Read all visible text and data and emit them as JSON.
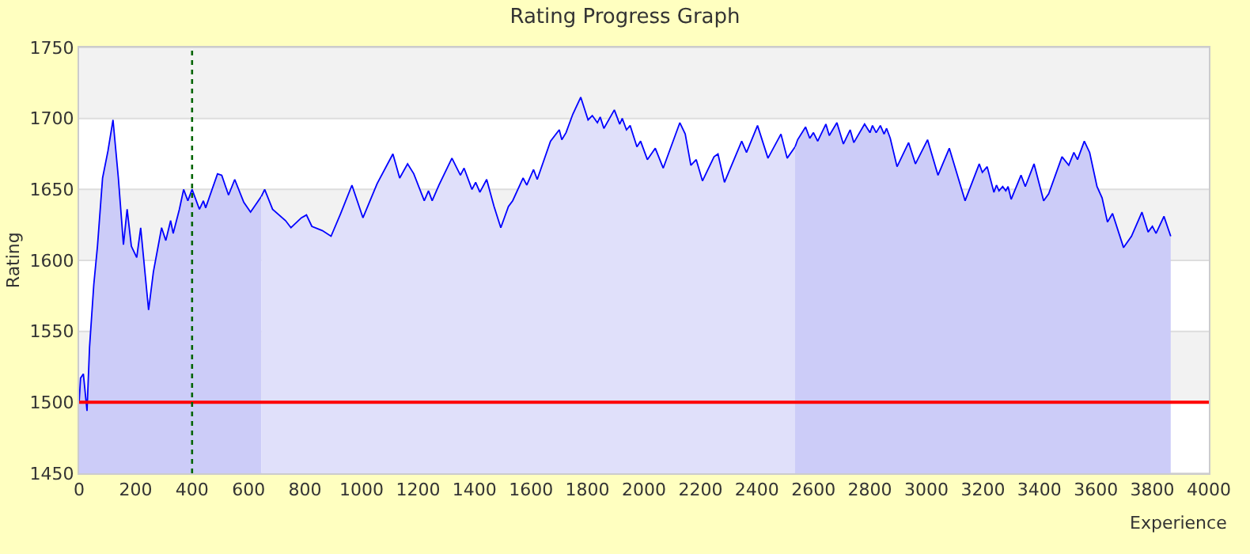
{
  "chart_data": {
    "type": "area",
    "title": "Rating Progress Graph",
    "xlabel": "Experience",
    "ylabel": "Rating",
    "xlim": [
      0,
      4000
    ],
    "xticks": [
      0,
      200,
      400,
      600,
      800,
      1000,
      1200,
      1400,
      1600,
      1800,
      2000,
      2200,
      2400,
      2600,
      2800,
      3000,
      3200,
      3400,
      3600,
      3800,
      4000
    ],
    "ylim": [
      1450,
      1750
    ],
    "yticks": [
      1450,
      1500,
      1550,
      1600,
      1650,
      1700,
      1750
    ],
    "grid": "y",
    "series": [
      {
        "color": "#ccccf8",
        "x": [
          0,
          5,
          15,
          28,
          37,
          52,
          65,
          83,
          102,
          120,
          139,
          157,
          170,
          185,
          204,
          218,
          246,
          263,
          292,
          307,
          324,
          333,
          355,
          370,
          385,
          400,
          426,
          440,
          448,
          490,
          505,
          529,
          551,
          583,
          607,
          645
        ],
        "values": [
          1500,
          1517,
          1520,
          1494,
          1539,
          1583,
          1610,
          1658,
          1677,
          1699,
          1658,
          1611,
          1636,
          1610,
          1602,
          1623,
          1565,
          1592,
          1623,
          1614,
          1628,
          1619,
          1636,
          1650,
          1642,
          1650,
          1636,
          1642,
          1637,
          1661,
          1660,
          1646,
          1657,
          1641,
          1634,
          1645
        ]
      },
      {
        "color": "#e0e0fa",
        "x": [
          645,
          657,
          685,
          731,
          750,
          787,
          805,
          824,
          861,
          892,
          926,
          966,
          1005,
          1055,
          1111,
          1135,
          1163,
          1185,
          1222,
          1237,
          1250,
          1274,
          1320,
          1350,
          1363,
          1391,
          1404,
          1419,
          1443,
          1469,
          1493,
          1520,
          1535,
          1572,
          1585,
          1609,
          1622,
          1669,
          1700,
          1709,
          1724,
          1748,
          1776,
          1802,
          1817,
          1835,
          1845,
          1858,
          1895,
          1914,
          1923,
          1938,
          1951,
          1975,
          1988,
          2012,
          2040,
          2068,
          2127,
          2146,
          2166,
          2185,
          2207,
          2248,
          2262,
          2285,
          2346,
          2363,
          2402,
          2439,
          2485,
          2507,
          2535
        ],
        "values": [
          1645,
          1650,
          1636,
          1628,
          1623,
          1630,
          1632,
          1624,
          1621,
          1617,
          1633,
          1653,
          1630,
          1654,
          1675,
          1658,
          1668,
          1661,
          1642,
          1649,
          1642,
          1653,
          1672,
          1660,
          1665,
          1650,
          1655,
          1648,
          1657,
          1638,
          1623,
          1638,
          1642,
          1658,
          1653,
          1664,
          1657,
          1684,
          1692,
          1685,
          1690,
          1703,
          1715,
          1699,
          1702,
          1697,
          1701,
          1693,
          1706,
          1696,
          1700,
          1692,
          1695,
          1680,
          1684,
          1671,
          1679,
          1665,
          1697,
          1689,
          1667,
          1671,
          1656,
          1673,
          1675,
          1655,
          1684,
          1676,
          1695,
          1672,
          1689,
          1672,
          1680
        ]
      },
      {
        "color": "#ccccf8",
        "x": [
          2535,
          2544,
          2572,
          2587,
          2600,
          2615,
          2644,
          2656,
          2683,
          2706,
          2730,
          2743,
          2781,
          2800,
          2809,
          2822,
          2837,
          2850,
          2859,
          2872,
          2896,
          2937,
          2961,
          3004,
          3041,
          3081,
          3137,
          3187,
          3198,
          3215,
          3239,
          3248,
          3257,
          3270,
          3281,
          3289,
          3300,
          3335,
          3350,
          3381,
          3415,
          3433,
          3480,
          3504,
          3522,
          3535,
          3559,
          3578,
          3604,
          3622,
          3641,
          3659,
          3698,
          3726,
          3763,
          3785,
          3800,
          3813,
          3841,
          3865
        ],
        "values": [
          1680,
          1685,
          1694,
          1686,
          1690,
          1684,
          1696,
          1688,
          1697,
          1682,
          1692,
          1683,
          1696,
          1690,
          1695,
          1690,
          1695,
          1689,
          1693,
          1686,
          1666,
          1683,
          1668,
          1685,
          1660,
          1679,
          1642,
          1668,
          1662,
          1666,
          1648,
          1653,
          1649,
          1652,
          1649,
          1652,
          1643,
          1660,
          1652,
          1668,
          1642,
          1647,
          1673,
          1667,
          1676,
          1671,
          1684,
          1676,
          1652,
          1644,
          1627,
          1633,
          1609,
          1617,
          1634,
          1620,
          1624,
          1619,
          1631,
          1617
        ]
      }
    ],
    "ref_lines": [
      {
        "axis": "y",
        "value": 1500,
        "color": "#ff0000",
        "line_style": "solid"
      },
      {
        "axis": "x",
        "value": 400,
        "color": "#006400",
        "line_style": "dotted"
      }
    ]
  }
}
